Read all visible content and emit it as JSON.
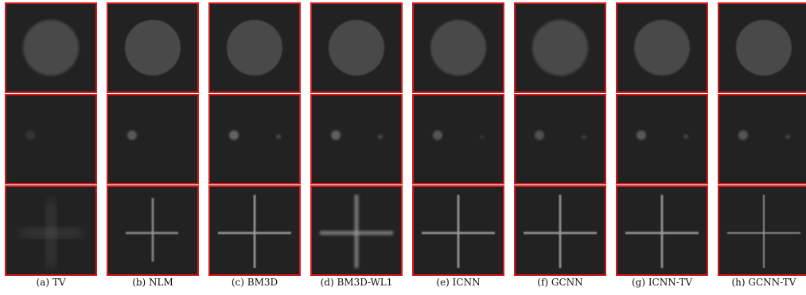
{
  "figure": {
    "panels": [
      {
        "id": "a",
        "caption": "(a) TV",
        "disk_blur": 1.5,
        "dot1": 0.25,
        "dot2": 0.0,
        "cross_style": "blob"
      },
      {
        "id": "b",
        "caption": "(b) NLM",
        "disk_blur": 0.6,
        "dot1": 0.75,
        "dot2": 0.0,
        "cross_style": "short"
      },
      {
        "id": "c",
        "caption": "(c) BM3D",
        "disk_blur": 0.8,
        "dot1": 0.9,
        "dot2": 0.55,
        "cross_style": "sharp"
      },
      {
        "id": "d",
        "caption": "(d) BM3D-WL1",
        "disk_blur": 0.8,
        "dot1": 0.85,
        "dot2": 0.5,
        "cross_style": "wide"
      },
      {
        "id": "e",
        "caption": "(e) ICNN",
        "disk_blur": 1.4,
        "dot1": 0.7,
        "dot2": 0.2,
        "cross_style": "sharp"
      },
      {
        "id": "f",
        "caption": "(f) GCNN",
        "disk_blur": 1.6,
        "dot1": 0.65,
        "dot2": 0.35,
        "cross_style": "sharp"
      },
      {
        "id": "g",
        "caption": "(g) ICNN-TV",
        "disk_blur": 1.0,
        "dot1": 0.75,
        "dot2": 0.45,
        "cross_style": "sharp"
      },
      {
        "id": "h",
        "caption": "(h) GCNN-TV",
        "disk_blur": 0.7,
        "dot1": 0.7,
        "dot2": 0.45,
        "cross_style": "thin"
      }
    ]
  },
  "colors": {
    "frame": "#d41a1a",
    "background": "#222222",
    "disk": "#4a4a4a",
    "feature": "#9a9a9a"
  }
}
